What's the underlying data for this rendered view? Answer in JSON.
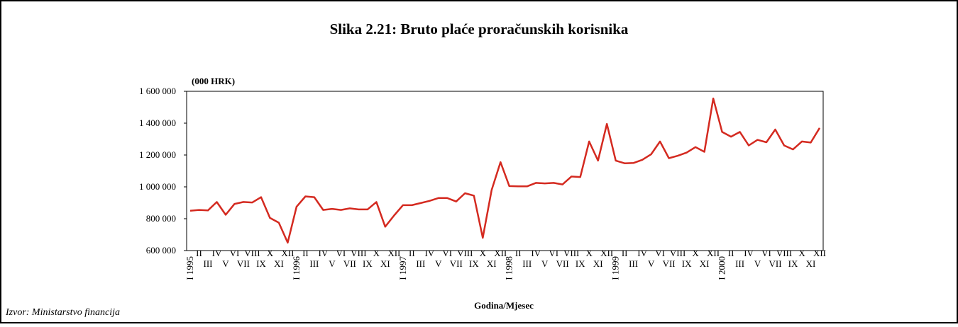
{
  "chart_data": {
    "type": "line",
    "title": "Slika 2.21: Bruto plaće proračunskih korisnika",
    "y_label": "(000 HRK)",
    "x_label": "Godina/Mjesec",
    "source": "Izvor: Ministarstvo financija",
    "categories": [
      "I 1995",
      "II",
      "III",
      "IV",
      "V",
      "VI",
      "VII",
      "VIII",
      "IX",
      "X",
      "XI",
      "XII",
      "I 1996",
      "II",
      "III",
      "IV",
      "V",
      "VI",
      "VII",
      "VIII",
      "IX",
      "X",
      "XI",
      "XII",
      "I 1997",
      "II",
      "III",
      "IV",
      "V",
      "VI",
      "VII",
      "VIII",
      "IX",
      "X",
      "XI",
      "XII",
      "I 1998",
      "II",
      "III",
      "IV",
      "V",
      "VI",
      "VII",
      "VIII",
      "IX",
      "X",
      "XI",
      "XII",
      "I 1999",
      "II",
      "III",
      "IV",
      "V",
      "VI",
      "VII",
      "VIII",
      "IX",
      "X",
      "XI",
      "XII",
      "I 2000",
      "II",
      "III",
      "IV",
      "V",
      "VI",
      "VII",
      "VIII",
      "IX",
      "X",
      "XI",
      "XII"
    ],
    "series": [
      {
        "name": "Bruto plaće",
        "color": "#d42a20",
        "values": [
          850000,
          855000,
          852000,
          905000,
          825000,
          893000,
          905000,
          902000,
          935000,
          805000,
          775000,
          650000,
          875000,
          940000,
          935000,
          855000,
          862000,
          855000,
          865000,
          858000,
          858000,
          905000,
          750000,
          820000,
          885000,
          885000,
          898000,
          912000,
          930000,
          930000,
          908000,
          960000,
          945000,
          680000,
          980000,
          1155000,
          1005000,
          1003000,
          1003000,
          1025000,
          1022000,
          1025000,
          1015000,
          1065000,
          1062000,
          1285000,
          1165000,
          1395000,
          1165000,
          1148000,
          1150000,
          1170000,
          1205000,
          1285000,
          1180000,
          1195000,
          1215000,
          1250000,
          1220000,
          1555000,
          1345000,
          1315000,
          1345000,
          1260000,
          1295000,
          1280000,
          1360000,
          1260000,
          1235000,
          1285000,
          1278000,
          1370000
        ]
      }
    ],
    "ylim": [
      600000,
      1600000
    ],
    "yticks": [
      {
        "value": 600000,
        "label": "600 000"
      },
      {
        "value": 800000,
        "label": "800 000"
      },
      {
        "value": 1000000,
        "label": "1 000 000"
      },
      {
        "value": 1200000,
        "label": "1 200 000"
      },
      {
        "value": 1400000,
        "label": "1 400 000"
      },
      {
        "value": 1600000,
        "label": "1 600 000"
      }
    ],
    "grid": false
  }
}
